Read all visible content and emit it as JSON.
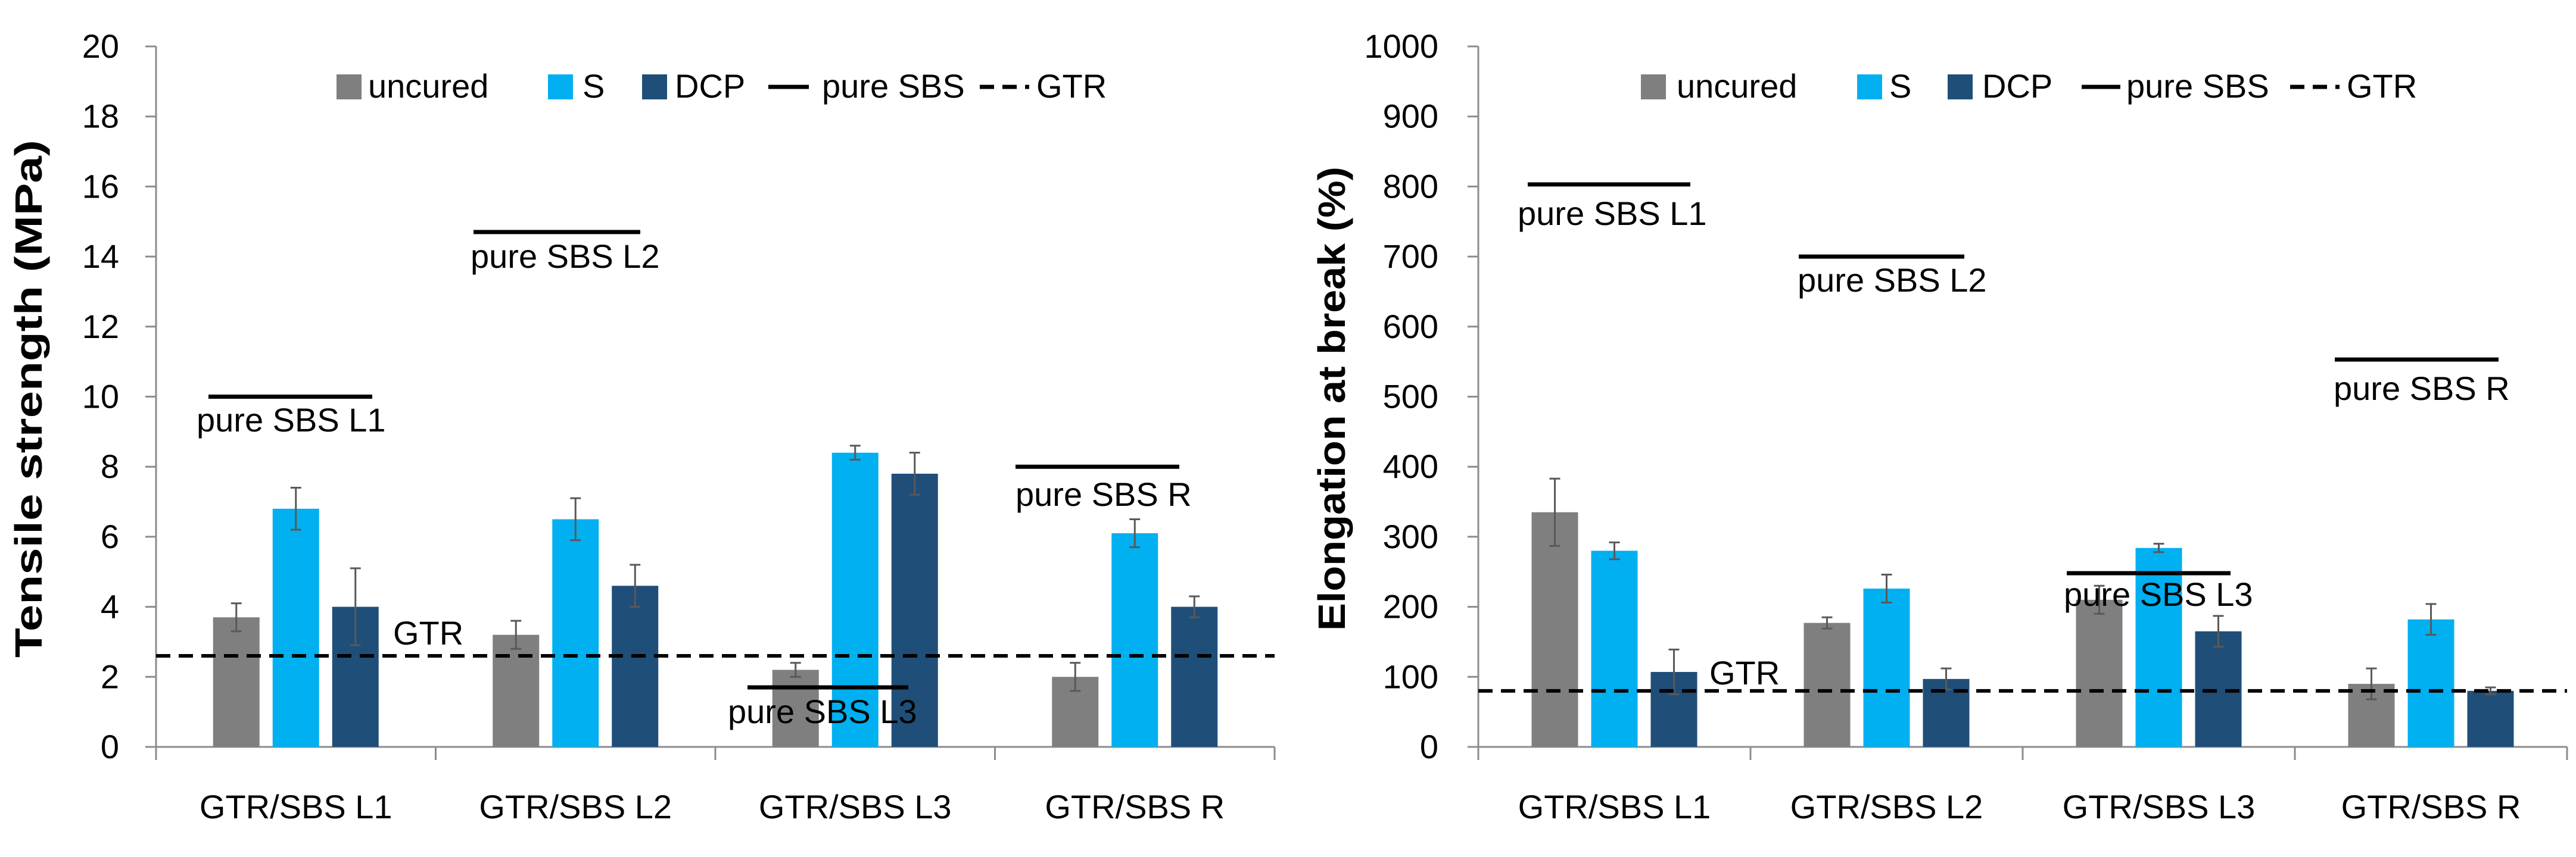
{
  "chart_data": [
    {
      "type": "bar",
      "title": "",
      "xlabel": "",
      "ylabel": "Tensile strength  (MPa)",
      "ylim": [
        0,
        20
      ],
      "ytick_step": 2,
      "categories": [
        "GTR/SBS L1",
        "GTR/SBS L2",
        "GTR/SBS L3",
        "GTR/SBS R"
      ],
      "series": [
        {
          "name": "uncured",
          "color": "#7f7f7f",
          "values": [
            3.7,
            3.2,
            2.2,
            2.0
          ],
          "errors": [
            0.4,
            0.4,
            0.2,
            0.4
          ]
        },
        {
          "name": "S",
          "color": "#00b0f0",
          "values": [
            6.8,
            6.5,
            8.4,
            6.1
          ],
          "errors": [
            0.6,
            0.6,
            0.2,
            0.4
          ]
        },
        {
          "name": "DCP",
          "color": "#1f4e79",
          "values": [
            4.0,
            4.6,
            7.8,
            4.0
          ],
          "errors": [
            1.1,
            0.6,
            0.6,
            0.3
          ]
        }
      ],
      "reference_lines": [
        {
          "label": "pure SBS L1",
          "value": 10.0,
          "category": 0
        },
        {
          "label": "pure SBS L2",
          "value": 14.7,
          "category": 1
        },
        {
          "label": "pure SBS L3",
          "value": 1.7,
          "category": 2
        },
        {
          "label": "pure SBS R",
          "value": 8.0,
          "category": 3
        }
      ],
      "gtr_line": {
        "label": "GTR",
        "value": 2.6
      },
      "legend": {
        "position": "top",
        "items": [
          "uncured",
          "S",
          "DCP",
          "pure SBS",
          "GTR"
        ]
      },
      "grid": false
    },
    {
      "type": "bar",
      "title": "",
      "xlabel": "",
      "ylabel": "Elongation at break (%)",
      "ylim": [
        0,
        1000
      ],
      "ytick_step": 100,
      "categories": [
        "GTR/SBS L1",
        "GTR/SBS L2",
        "GTR/SBS L3",
        "GTR/SBS R"
      ],
      "series": [
        {
          "name": "uncured",
          "color": "#7f7f7f",
          "values": [
            335,
            177,
            210,
            90
          ],
          "errors": [
            48,
            8,
            20,
            22
          ]
        },
        {
          "name": "S",
          "color": "#00b0f0",
          "values": [
            280,
            226,
            284,
            182
          ],
          "errors": [
            12,
            20,
            6,
            22
          ]
        },
        {
          "name": "DCP",
          "color": "#1f4e79",
          "values": [
            107,
            97,
            165,
            80
          ],
          "errors": [
            32,
            15,
            22,
            5
          ]
        }
      ],
      "reference_lines": [
        {
          "label": "pure SBS L1",
          "value": 803,
          "category": 0
        },
        {
          "label": "pure SBS L2",
          "value": 700,
          "category": 1
        },
        {
          "label": "pure SBS L3",
          "value": 248,
          "category": 2
        },
        {
          "label": "pure SBS R",
          "value": 553,
          "category": 3
        }
      ],
      "gtr_line": {
        "label": "GTR",
        "value": 80
      },
      "legend": {
        "position": "top",
        "items": [
          "uncured",
          "S",
          "DCP",
          "pure SBS",
          "GTR"
        ]
      },
      "grid": false
    }
  ]
}
